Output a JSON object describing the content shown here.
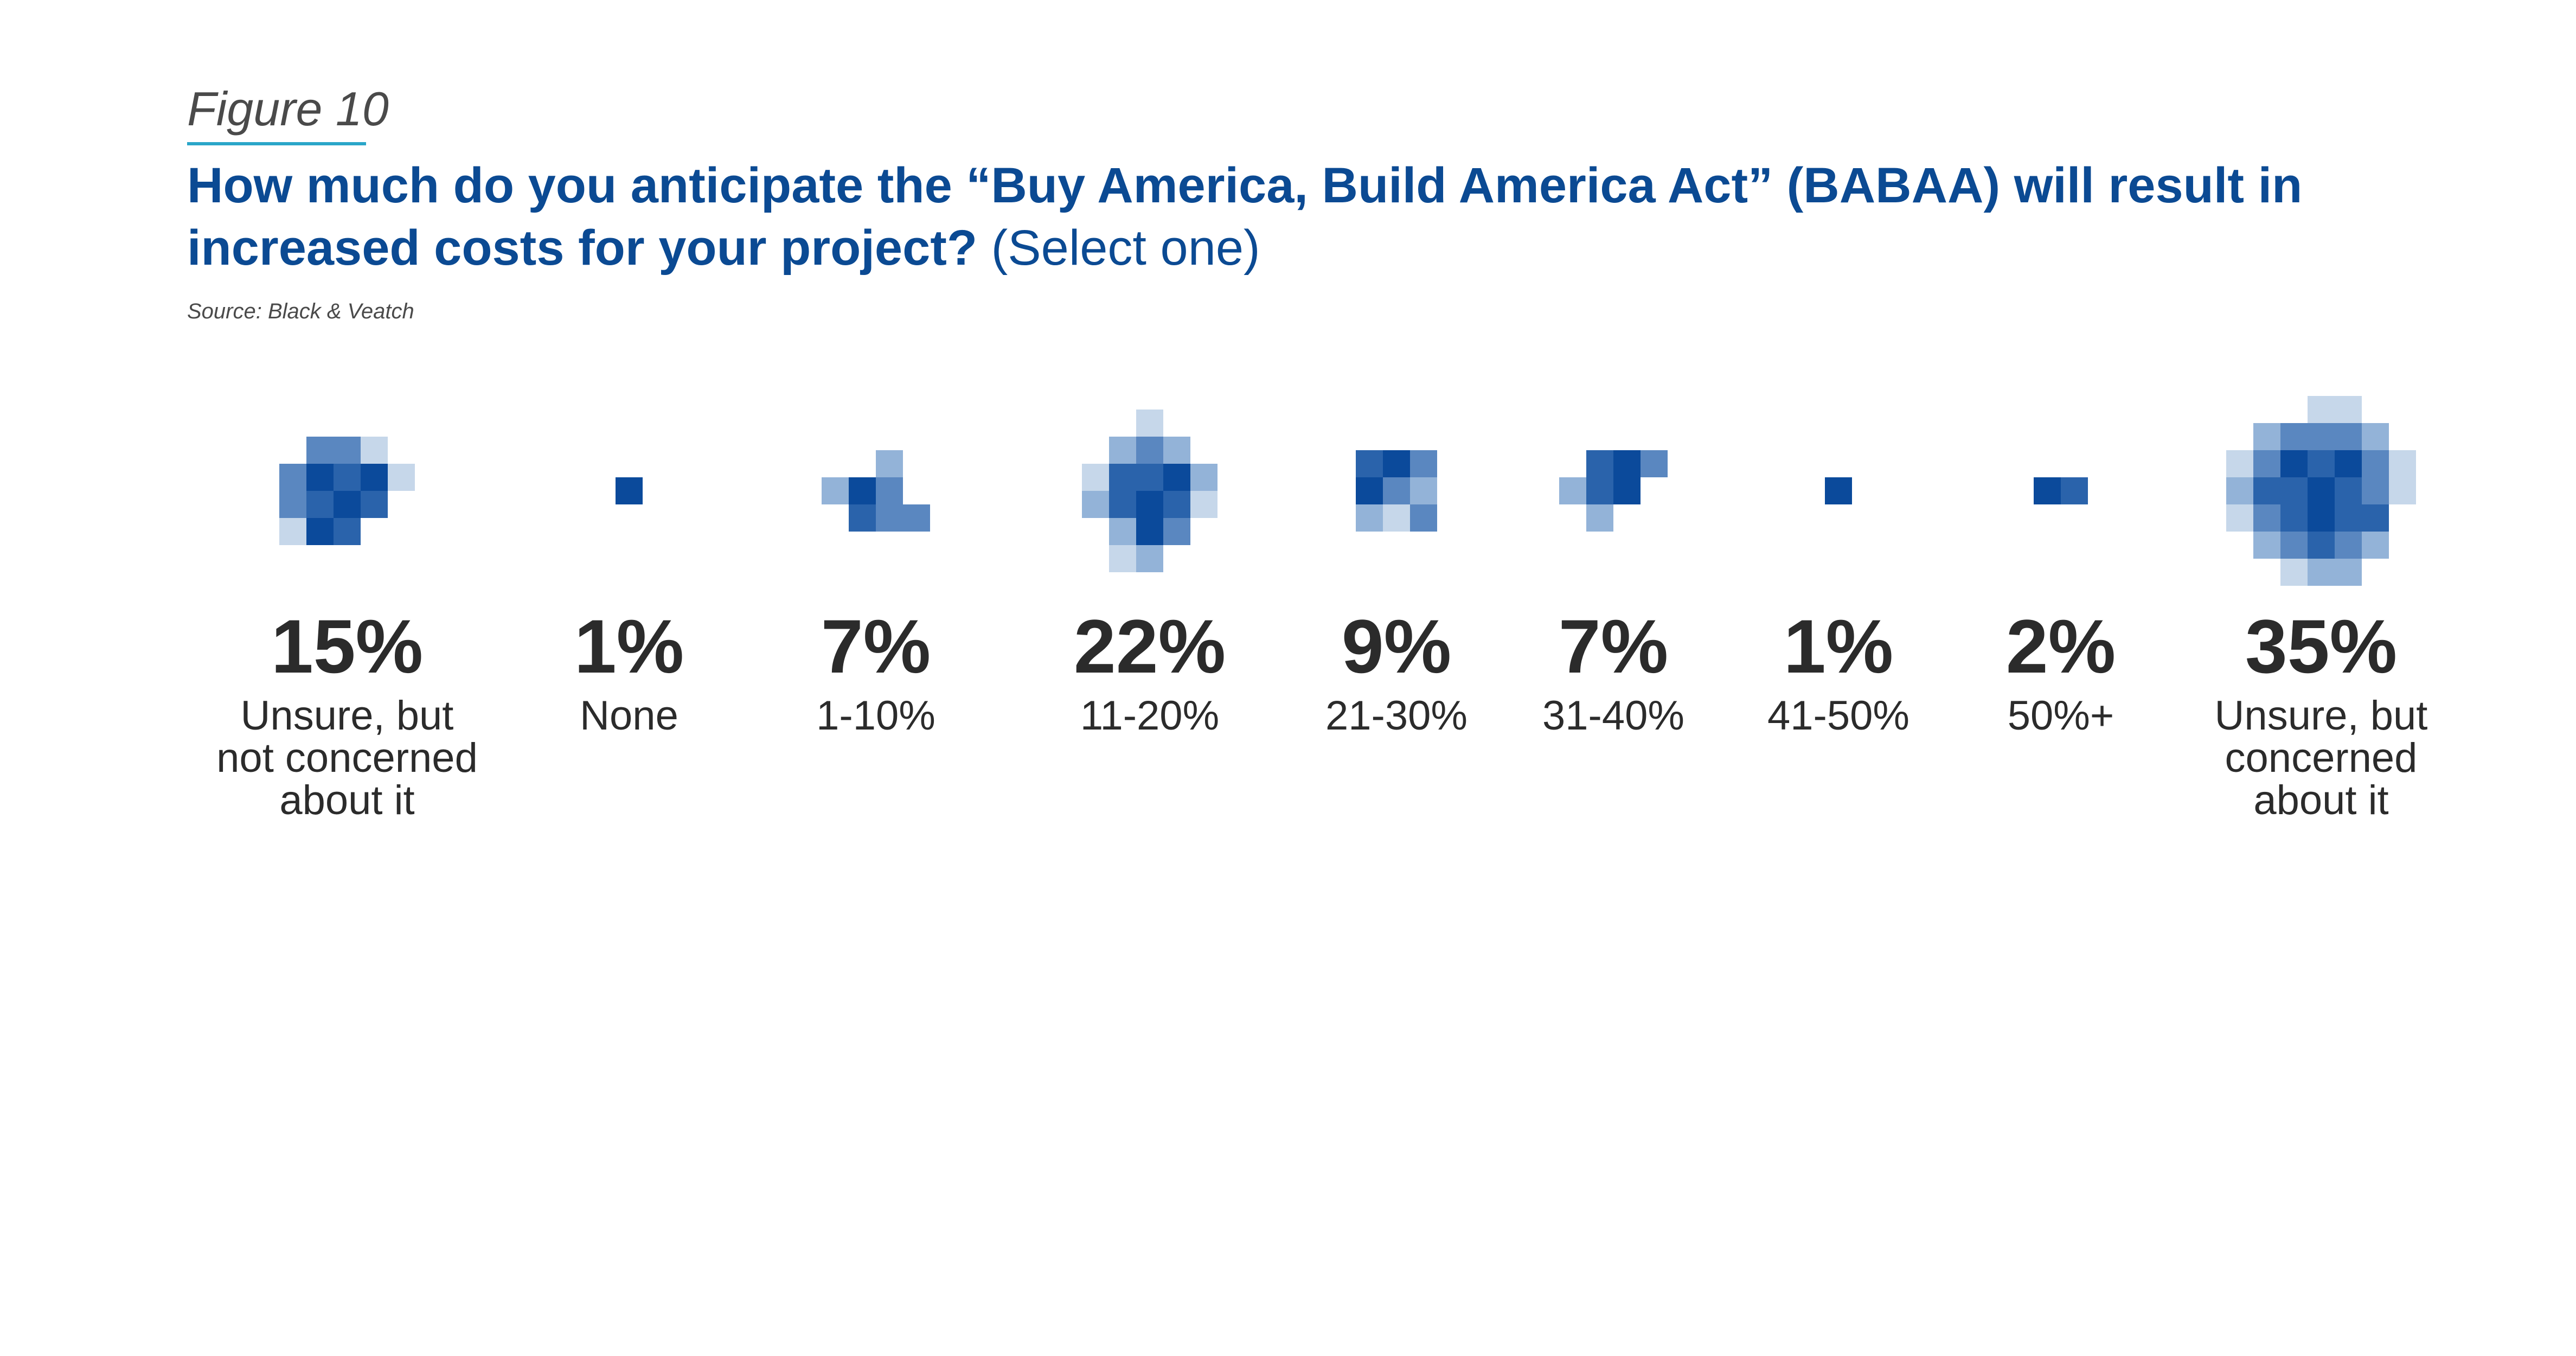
{
  "figure": {
    "label": "Figure 10"
  },
  "header": {
    "title": "How much do you anticipate the “Buy America, Build America Act” (BABAA) will result in increased costs for your project?",
    "subtitle": "(Select one)"
  },
  "source": "Source: Black & Veatch",
  "colors": {
    "title": "#0b4a93",
    "rule": "#2aa6c9",
    "text": "#2b2b2b",
    "shades": [
      "#c6d7ea",
      "#93b3d8",
      "#5a87c0",
      "#2a63ab",
      "#0b4a9b"
    ]
  },
  "chart_data": {
    "type": "pixel-cluster",
    "title": "How much do you anticipate the “Buy America, Build America Act” (BABAA) will result in increased costs for your project? (Select one)",
    "categories": [
      "Unsure, but not concerned about it",
      "None",
      "1-10%",
      "11-20%",
      "21-30%",
      "31-40%",
      "41-50%",
      "50%+",
      "Unsure, but concerned about it"
    ],
    "values": [
      15,
      1,
      7,
      22,
      9,
      7,
      1,
      2,
      35
    ],
    "value_labels": [
      "15%",
      "1%",
      "7%",
      "22%",
      "9%",
      "7%",
      "1%",
      "2%",
      "35%"
    ],
    "unit": "%"
  }
}
